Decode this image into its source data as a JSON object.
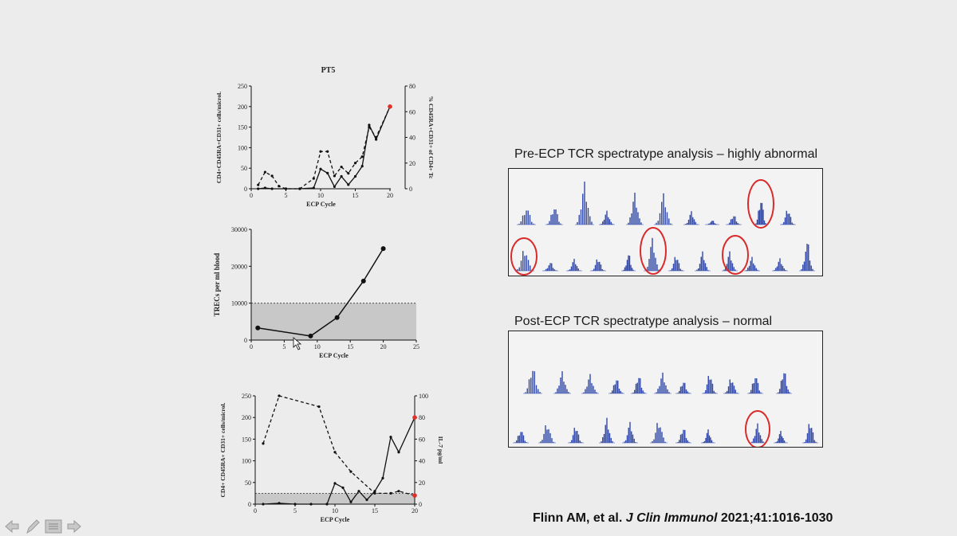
{
  "chart_data": [
    {
      "type": "line",
      "title": "PT5",
      "xlabel": "ECP Cycle",
      "ylabel": "CD4+CD45RA+CD31+ cells/microl.",
      "y2label": "% CD45RA+CD31+ of CD4+ Tc",
      "xlim": [
        0,
        25
      ],
      "ylim": [
        0,
        250
      ],
      "y2lim": [
        0,
        80
      ],
      "xticks": [
        0,
        5,
        10,
        15,
        20
      ],
      "yticks": [
        0,
        50,
        100,
        150,
        200,
        250
      ],
      "y2ticks": [
        0,
        20,
        40,
        60,
        80
      ],
      "series": [
        {
          "style": "solid",
          "axis": "left",
          "x": [
            1,
            2,
            3,
            5,
            7,
            9,
            10,
            11,
            12,
            13,
            14,
            15,
            16,
            17,
            18,
            20
          ],
          "y": [
            0,
            2,
            0,
            0,
            0,
            2,
            48,
            38,
            5,
            30,
            10,
            30,
            55,
            155,
            120,
            200
          ]
        },
        {
          "style": "dashed",
          "axis": "right",
          "x": [
            1,
            2,
            3,
            4,
            5,
            7,
            9,
            10,
            11,
            12,
            13,
            14,
            15,
            16,
            17,
            18,
            20
          ],
          "y": [
            3,
            13,
            10,
            2,
            0,
            0,
            8,
            29,
            29,
            10,
            17,
            12,
            20,
            25,
            48,
            40,
            64
          ]
        }
      ],
      "highlight": {
        "x": 20,
        "y": 200,
        "color": "#e0302a"
      }
    },
    {
      "type": "line",
      "xlabel": "ECP Cycle",
      "ylabel": "TRECs per ml blood",
      "xlim": [
        0,
        25
      ],
      "ylim": [
        0,
        30000
      ],
      "xticks": [
        0,
        5,
        10,
        15,
        20,
        25
      ],
      "yticks": [
        0,
        10000,
        20000,
        30000
      ],
      "shaded_range": [
        0,
        10000
      ],
      "series": [
        {
          "style": "solid",
          "x": [
            1,
            9,
            13,
            17,
            20
          ],
          "y": [
            3300,
            1100,
            6100,
            16000,
            24800
          ]
        }
      ]
    },
    {
      "type": "line",
      "xlabel": "ECP Cycle",
      "ylabel": "CD4+ CD45RA+ CD31+ cells/microl.",
      "y2label": "IL-7 pg/ml",
      "xlim": [
        0,
        20
      ],
      "ylim": [
        0,
        250
      ],
      "y2lim": [
        0,
        100
      ],
      "xticks": [
        0,
        5,
        10,
        15,
        20
      ],
      "yticks": [
        0,
        50,
        100,
        150,
        200,
        250
      ],
      "y2ticks": [
        0,
        20,
        40,
        60,
        80,
        100
      ],
      "shaded_range": [
        0,
        25
      ],
      "series": [
        {
          "style": "solid",
          "axis": "left",
          "x": [
            1,
            3,
            5,
            7,
            9,
            10,
            11,
            12,
            13,
            14,
            15,
            16,
            17,
            18,
            20
          ],
          "y": [
            0,
            2,
            0,
            0,
            0,
            48,
            38,
            5,
            30,
            10,
            30,
            60,
            155,
            120,
            200
          ]
        },
        {
          "style": "dashed",
          "axis": "right",
          "x": [
            1,
            3,
            8,
            10,
            12,
            15,
            17,
            18,
            20
          ],
          "y": [
            56,
            100,
            90,
            48,
            30,
            10,
            10,
            12,
            8
          ]
        }
      ],
      "highlights": [
        {
          "x": 20,
          "y": 200,
          "axis": "left",
          "color": "#e0302a"
        },
        {
          "x": 20,
          "y": 8,
          "axis": "right",
          "color": "#e0302a"
        }
      ]
    }
  ],
  "spectratype": {
    "pre_title": "Pre-ECP TCR spectratype analysis – highly abnormal",
    "post_title": "Post-ECP TCR spectratype analysis – normal",
    "peak_color": "#3048a8",
    "circle_color": "#d92b2b"
  },
  "citation": {
    "authors": "Flinn AM, et al. ",
    "journal": "J Clin Immunol",
    "ref": " 2021;41:1016-1030"
  },
  "nav": {
    "icons": [
      "arrow-left-icon",
      "pen-icon",
      "menu-icon",
      "arrow-right-icon"
    ]
  }
}
